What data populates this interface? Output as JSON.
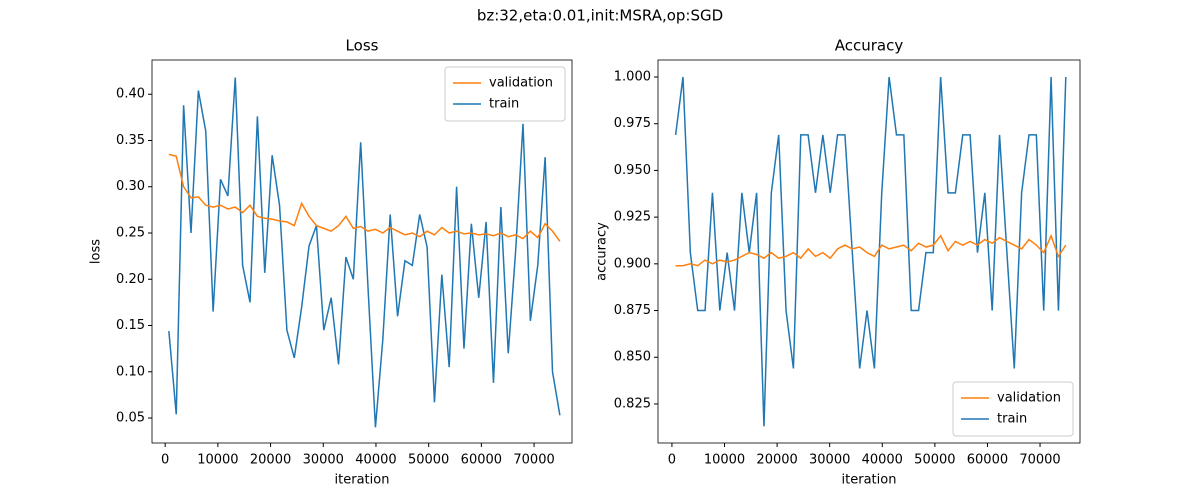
{
  "title": "bz:32,eta:0.01,init:MSRA,op:SGD",
  "chart_data": [
    {
      "type": "line",
      "title": "Loss",
      "xlabel": "iteration",
      "ylabel": "loss",
      "x": [
        700,
        2100,
        3500,
        4900,
        6300,
        7700,
        9100,
        10500,
        11900,
        13300,
        14700,
        16100,
        17500,
        18900,
        20300,
        21700,
        23100,
        24500,
        25900,
        27300,
        28700,
        30100,
        31500,
        32900,
        34300,
        35700,
        37100,
        38500,
        39900,
        41300,
        42700,
        44100,
        45500,
        46900,
        48300,
        49700,
        51100,
        52500,
        53900,
        55300,
        56700,
        58100,
        59500,
        60900,
        62300,
        63700,
        65100,
        66500,
        67900,
        69300,
        70700,
        72100,
        73500,
        74900
      ],
      "series": [
        {
          "name": "validation",
          "color": "#ff7f0e",
          "values": [
            0.335,
            0.333,
            0.3,
            0.288,
            0.289,
            0.28,
            0.278,
            0.28,
            0.276,
            0.278,
            0.272,
            0.28,
            0.268,
            0.266,
            0.265,
            0.263,
            0.262,
            0.258,
            0.282,
            0.268,
            0.258,
            0.255,
            0.252,
            0.258,
            0.268,
            0.255,
            0.257,
            0.252,
            0.254,
            0.25,
            0.256,
            0.252,
            0.248,
            0.25,
            0.246,
            0.252,
            0.248,
            0.256,
            0.25,
            0.252,
            0.249,
            0.25,
            0.248,
            0.249,
            0.247,
            0.25,
            0.246,
            0.248,
            0.244,
            0.252,
            0.245,
            0.26,
            0.252,
            0.241
          ]
        },
        {
          "name": "train",
          "color": "#1f77b4",
          "values": [
            0.144,
            0.054,
            0.388,
            0.25,
            0.404,
            0.36,
            0.165,
            0.308,
            0.29,
            0.418,
            0.215,
            0.175,
            0.376,
            0.207,
            0.334,
            0.28,
            0.145,
            0.115,
            0.17,
            0.236,
            0.258,
            0.145,
            0.18,
            0.108,
            0.224,
            0.2,
            0.348,
            0.19,
            0.04,
            0.135,
            0.27,
            0.16,
            0.22,
            0.215,
            0.27,
            0.235,
            0.067,
            0.205,
            0.105,
            0.3,
            0.125,
            0.26,
            0.18,
            0.262,
            0.088,
            0.278,
            0.12,
            0.23,
            0.368,
            0.155,
            0.215,
            0.332,
            0.1,
            0.053
          ]
        }
      ],
      "xlim": [
        -2500,
        77200
      ],
      "ylim": [
        0.023,
        0.437
      ],
      "xticks": [
        0,
        10000,
        20000,
        30000,
        40000,
        50000,
        60000,
        70000
      ],
      "yticks": [
        0.05,
        {
          "value": 0.1,
          "label": "0.10"
        },
        0.15,
        {
          "value": 0.2,
          "label": "0.20"
        },
        0.25,
        {
          "value": 0.3,
          "label": "0.30"
        },
        0.35,
        {
          "value": 0.4,
          "label": "0.40"
        }
      ],
      "legend": "upper right"
    },
    {
      "type": "line",
      "title": "Accuracy",
      "xlabel": "iteration",
      "ylabel": "accuracy",
      "x": [
        700,
        2100,
        3500,
        4900,
        6300,
        7700,
        9100,
        10500,
        11900,
        13300,
        14700,
        16100,
        17500,
        18900,
        20300,
        21700,
        23100,
        24500,
        25900,
        27300,
        28700,
        30100,
        31500,
        32900,
        34300,
        35700,
        37100,
        38500,
        39900,
        41300,
        42700,
        44100,
        45500,
        46900,
        48300,
        49700,
        51100,
        52500,
        53900,
        55300,
        56700,
        58100,
        59500,
        60900,
        62300,
        63700,
        65100,
        66500,
        67900,
        69300,
        70700,
        72100,
        73500,
        74900
      ],
      "series": [
        {
          "name": "validation",
          "color": "#ff7f0e",
          "values": [
            0.899,
            0.899,
            0.9,
            0.899,
            0.902,
            0.9,
            0.902,
            0.901,
            0.902,
            0.904,
            0.906,
            0.905,
            0.903,
            0.906,
            0.903,
            0.904,
            0.906,
            0.903,
            0.908,
            0.904,
            0.906,
            0.903,
            0.908,
            0.91,
            0.908,
            0.909,
            0.906,
            0.904,
            0.91,
            0.908,
            0.909,
            0.91,
            0.907,
            0.911,
            0.909,
            0.91,
            0.915,
            0.907,
            0.912,
            0.91,
            0.912,
            0.91,
            0.913,
            0.911,
            0.914,
            0.912,
            0.91,
            0.908,
            0.913,
            0.91,
            0.906,
            0.915,
            0.904,
            0.91
          ]
        },
        {
          "name": "train",
          "color": "#1f77b4",
          "values": [
            0.969,
            1.0,
            0.906,
            0.875,
            0.875,
            0.938,
            0.875,
            0.906,
            0.875,
            0.938,
            0.906,
            0.938,
            0.813,
            0.938,
            0.969,
            0.875,
            0.844,
            0.969,
            0.969,
            0.938,
            0.969,
            0.938,
            0.969,
            0.969,
            0.906,
            0.844,
            0.875,
            0.844,
            0.938,
            1.0,
            0.969,
            0.969,
            0.875,
            0.875,
            0.906,
            0.906,
            1.0,
            0.938,
            0.938,
            0.969,
            0.969,
            0.906,
            0.938,
            0.875,
            0.969,
            0.906,
            0.844,
            0.938,
            0.969,
            0.969,
            0.875,
            1.0,
            0.875,
            1.0
          ]
        }
      ],
      "xlim": [
        -2650,
        77600
      ],
      "ylim": [
        0.8041,
        1.0091
      ],
      "xticks": [
        0,
        10000,
        20000,
        30000,
        40000,
        50000,
        60000,
        70000
      ],
      "yticks": [
        0.825,
        {
          "value": 0.85,
          "label": "0.850"
        },
        0.875,
        {
          "value": 0.9,
          "label": "0.900"
        },
        0.925,
        {
          "value": 0.95,
          "label": "0.950"
        },
        0.975,
        {
          "value": 1,
          "label": "1.000"
        }
      ],
      "legend": "lower right"
    }
  ]
}
